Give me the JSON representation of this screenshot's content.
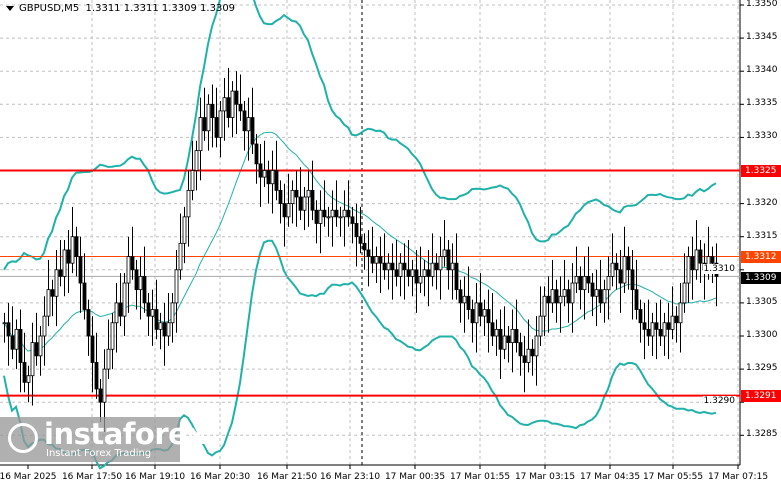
{
  "header": {
    "symbol": "GBPUSD,M5",
    "ohlc": "1.3311 1.3311 1.3309 1.3309"
  },
  "y_axis": {
    "ticks": [
      "1.3350",
      "1.3345",
      "1.3340",
      "1.3335",
      "1.3330",
      "1.3320",
      "1.3315",
      "1.3310",
      "1.3305",
      "1.3300",
      "1.3295",
      "1.3290",
      "1.3285"
    ],
    "min": 1.328,
    "max": 1.335
  },
  "x_axis": {
    "ticks": [
      "16 Mar 2025",
      "16 Mar 17:50",
      "16 Mar 19:10",
      "16 Mar 20:30",
      "16 Mar 21:50",
      "16 Mar 23:10",
      "17 Mar 00:35",
      "17 Mar 01:55",
      "17 Mar 03:15",
      "17 Mar 04:35",
      "17 Mar 05:55",
      "17 Mar 07:15"
    ]
  },
  "levels": [
    {
      "label": "1.3325",
      "price": 1.3325,
      "color": "#ff0000"
    },
    {
      "label": "1.3291",
      "price": 1.3291,
      "color": "#ff0000"
    }
  ],
  "bid": {
    "label": "1.3312",
    "price": 1.3312,
    "color": "#ff4500"
  },
  "last": {
    "label": "1.3309",
    "price": 1.3309,
    "color": "#000000"
  },
  "colors": {
    "bands": "#20b2aa",
    "candle": "#000000",
    "grid": "#c0c0c0"
  },
  "closes": [
    1.3302,
    1.33,
    1.3298,
    1.3301,
    1.3296,
    1.3293,
    1.3294,
    1.3299,
    1.3297,
    1.33,
    1.3303,
    1.3307,
    1.3306,
    1.331,
    1.3309,
    1.3313,
    1.3311,
    1.3315,
    1.3312,
    1.3308,
    1.3304,
    1.33,
    1.3296,
    1.3292,
    1.329,
    1.3295,
    1.3298,
    1.3302,
    1.3305,
    1.3303,
    1.3308,
    1.3312,
    1.331,
    1.3307,
    1.3309,
    1.3305,
    1.3303,
    1.3304,
    1.3301,
    1.3302,
    1.33,
    1.3302,
    1.3305,
    1.331,
    1.3314,
    1.3318,
    1.3322,
    1.3325,
    1.3328,
    1.3333,
    1.3331,
    1.3335,
    1.3333,
    1.333,
    1.3334,
    1.3336,
    1.3333,
    1.3337,
    1.3335,
    1.3334,
    1.3331,
    1.3333,
    1.3329,
    1.3326,
    1.3324,
    1.3325,
    1.3323,
    1.3325,
    1.3322,
    1.332,
    1.3318,
    1.332,
    1.3322,
    1.3321,
    1.3319,
    1.3321,
    1.3322,
    1.3319,
    1.3317,
    1.3319,
    1.3318,
    1.3318,
    1.3319,
    1.3318,
    1.3318,
    1.3319,
    1.3318,
    1.3317,
    1.3315,
    1.3314,
    1.3313,
    1.3312,
    1.3311,
    1.3312,
    1.3311,
    1.331,
    1.3311,
    1.331,
    1.3309,
    1.3311,
    1.331,
    1.3309,
    1.331,
    1.3308,
    1.3309,
    1.331,
    1.3309,
    1.3311,
    1.331,
    1.3312,
    1.3313,
    1.331,
    1.3311,
    1.3307,
    1.3305,
    1.3306,
    1.3304,
    1.3302,
    1.3305,
    1.3303,
    1.3304,
    1.3302,
    1.33,
    1.3301,
    1.3298,
    1.33,
    1.3299,
    1.3301,
    1.3299,
    1.3297,
    1.3296,
    1.3298,
    1.3297,
    1.33,
    1.3303,
    1.3306,
    1.3305,
    1.3307,
    1.3305,
    1.3306,
    1.3307,
    1.3305,
    1.3308,
    1.3309,
    1.3307,
    1.3309,
    1.3308,
    1.3306,
    1.3307,
    1.3305,
    1.3307,
    1.3309,
    1.3311,
    1.331,
    1.3308,
    1.3312,
    1.331,
    1.3307,
    1.3304,
    1.3302,
    1.3301,
    1.33,
    1.3302,
    1.3301,
    1.33,
    1.3302,
    1.3301,
    1.3303,
    1.3302,
    1.3305,
    1.3308,
    1.3312,
    1.331,
    1.3313,
    1.3311,
    1.331,
    1.3312,
    1.3311,
    1.3309
  ],
  "watermark": {
    "brand": "instaforex",
    "tagline": "Instant Forex Trading"
  }
}
